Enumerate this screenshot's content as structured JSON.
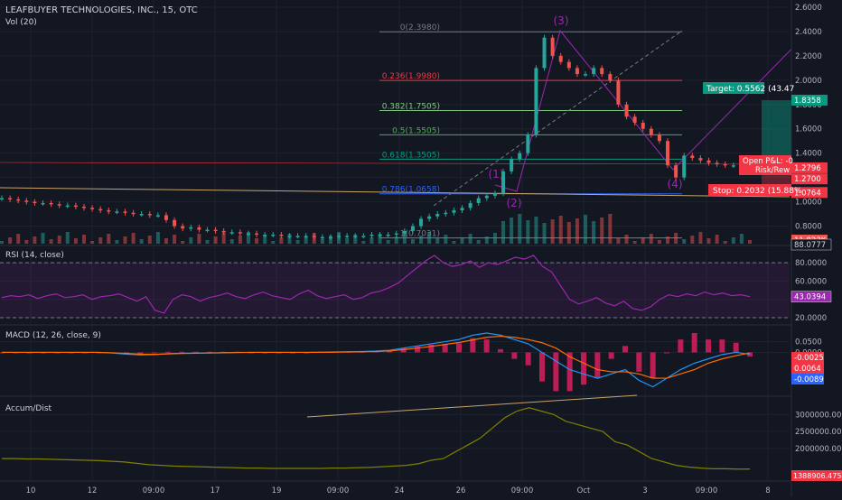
{
  "header": {
    "title": "LEAFBUYER TECHNOLOGIES, INC., 15, OTC",
    "vol_label": "Vol (20)"
  },
  "colors": {
    "background": "#131722",
    "up": "#26a69a",
    "down": "#ef5350",
    "rsi": "#9c27b0",
    "macd_line": "#2196f3",
    "signal_line": "#ff6d00",
    "hist": "#e91e63",
    "accum": "#808000",
    "fib": "#787b86"
  },
  "chart_data": [
    {
      "type": "line",
      "panel": "price",
      "y_ticks": [
        "2.6000",
        "2.4000",
        "2.2000",
        "2.0000",
        "1.8000",
        "1.6000",
        "1.4000",
        "1.2000",
        "1.0000",
        "0.8000"
      ],
      "ylim": [
        0.7,
        2.6
      ],
      "x_ticks": [
        "10",
        "12",
        "09:00",
        "17",
        "19",
        "09:00",
        "24",
        "26",
        "09:00",
        "Oct",
        "3",
        "09:00",
        "8"
      ],
      "fib_levels": [
        {
          "label": "0(2.3980)",
          "value": 2.398,
          "color": "#787b86"
        },
        {
          "label": "0.236(1.9980)",
          "value": 1.998,
          "color": "#f23645"
        },
        {
          "label": "0.382(1.7505)",
          "value": 1.7505,
          "color": "#81c784"
        },
        {
          "label": "0.5(1.5505)",
          "value": 1.5505,
          "color": "#4caf50"
        },
        {
          "label": "0.618(1.3505)",
          "value": 1.3505,
          "color": "#089981"
        },
        {
          "label": "0.786(1.0658)",
          "value": 1.0658,
          "color": "#2962ff"
        },
        {
          "label": "1(0.7031)",
          "value": 0.7031,
          "color": "#787b86"
        }
      ],
      "wave_labels": [
        "(1)",
        "(2)",
        "(3)",
        "(4)"
      ],
      "series": [
        {
          "values": [
            1.03,
            1.02,
            1.01,
            1.0,
            0.99,
            0.99,
            0.98,
            0.97,
            0.97,
            0.96,
            0.95,
            0.94,
            0.93,
            0.92,
            0.92,
            0.91,
            0.9,
            0.9,
            0.89,
            0.89,
            0.85,
            0.8,
            0.78,
            0.79,
            0.77,
            0.77,
            0.76,
            0.75,
            0.75,
            0.74,
            0.74,
            0.73,
            0.73,
            0.73,
            0.72,
            0.72,
            0.72,
            0.72,
            0.71,
            0.71,
            0.71,
            0.72,
            0.72,
            0.72,
            0.72,
            0.73,
            0.73,
            0.73,
            0.74,
            0.76,
            0.8,
            0.86,
            0.88,
            0.9,
            0.91,
            0.93,
            0.95,
            0.99,
            1.03,
            1.05,
            1.07,
            1.25,
            1.35,
            1.4,
            1.55,
            2.1,
            2.35,
            2.2,
            2.15,
            2.1,
            2.05,
            2.05,
            2.1,
            2.05,
            2.0,
            1.8,
            1.7,
            1.65,
            1.6,
            1.55,
            1.5,
            1.3,
            1.2,
            1.38,
            1.36,
            1.34,
            1.32,
            1.31,
            1.3,
            1.3,
            1.31,
            1.3
          ]
        }
      ],
      "annotations": {
        "target_label": "Target: 0.5562 (43.47",
        "target_price": "1.8358",
        "open_pl_label": "Open P&L: -0",
        "risk_label": "Risk/Rew",
        "stop_label": "Stop: 0.2032 (15.88%",
        "price_tags": [
          "1.2796",
          "1.2700",
          "1.0764"
        ],
        "vol_tag": "11.823K"
      }
    },
    {
      "type": "line",
      "panel": "rsi",
      "title": "RSI (14, close)",
      "y_ticks": [
        "80.0000",
        "60.0000",
        "40.0000",
        "20.0000"
      ],
      "ylim": [
        20,
        90
      ],
      "upper_tag": "88.0777",
      "last_tag": "43.0394",
      "series": [
        {
          "values": [
            42,
            44,
            43,
            45,
            41,
            44,
            46,
            42,
            43,
            45,
            40,
            43,
            44,
            46,
            42,
            38,
            43,
            28,
            25,
            40,
            45,
            43,
            38,
            42,
            44,
            47,
            43,
            41,
            45,
            48,
            44,
            42,
            40,
            46,
            50,
            44,
            41,
            43,
            45,
            40,
            42,
            47,
            49,
            53,
            58,
            66,
            74,
            82,
            88,
            80,
            76,
            78,
            82,
            75,
            80,
            78,
            82,
            86,
            84,
            88,
            76,
            70,
            55,
            40,
            35,
            38,
            42,
            36,
            33,
            38,
            30,
            28,
            32,
            40,
            45,
            43,
            46,
            44,
            48,
            45,
            47,
            44,
            45,
            43
          ]
        }
      ]
    },
    {
      "type": "line",
      "panel": "macd",
      "title": "MACD (12, 26, close, 9)",
      "y_ticks": [
        "0.0500",
        "0.0000"
      ],
      "ylim": [
        -0.17,
        0.09
      ],
      "tags": [
        "-0.0025",
        "0.0064",
        "-0.0089"
      ],
      "series": [
        {
          "name": "",
          "values": [
            0.0,
            0.0,
            0.0,
            0.0,
            0.0,
            0.0,
            0.0,
            0.0,
            -0.003,
            -0.008,
            -0.012,
            -0.01,
            -0.006,
            -0.004,
            -0.003,
            -0.002,
            -0.001,
            0.0,
            0.0,
            0.0,
            0.0,
            0.0,
            0.0,
            0.001,
            0.002,
            0.003,
            0.004,
            0.006,
            0.01,
            0.02,
            0.03,
            0.04,
            0.05,
            0.06,
            0.08,
            0.09,
            0.08,
            0.06,
            0.04,
            0.0,
            -0.04,
            -0.08,
            -0.1,
            -0.12,
            -0.1,
            -0.08,
            -0.13,
            -0.16,
            -0.12,
            -0.08,
            -0.05,
            -0.03,
            -0.01,
            0.0,
            -0.0089
          ]
        },
        {
          "name": "",
          "values": [
            0.0,
            0.0,
            0.0,
            0.0,
            0.0,
            0.0,
            0.0,
            0.0,
            -0.002,
            -0.005,
            -0.008,
            -0.009,
            -0.007,
            -0.005,
            -0.004,
            -0.003,
            -0.002,
            -0.001,
            0.0,
            0.0,
            0.0,
            0.0,
            0.0,
            0.0,
            0.001,
            0.002,
            0.003,
            0.004,
            0.007,
            0.013,
            0.02,
            0.028,
            0.037,
            0.046,
            0.058,
            0.07,
            0.075,
            0.07,
            0.06,
            0.045,
            0.02,
            -0.02,
            -0.05,
            -0.08,
            -0.09,
            -0.09,
            -0.1,
            -0.12,
            -0.12,
            -0.1,
            -0.08,
            -0.05,
            -0.03,
            -0.015,
            -0.0025
          ]
        }
      ]
    },
    {
      "type": "area",
      "panel": "accum",
      "title": "Accum/Dist",
      "y_ticks": [
        "3000000.0000",
        "2500000.0000",
        "2000000.0000"
      ],
      "ylim": [
        1250000,
        3300000
      ],
      "last_tag": "1388906.4750",
      "series": [
        {
          "values": [
            1700000,
            1700000,
            1690000,
            1690000,
            1680000,
            1670000,
            1660000,
            1650000,
            1640000,
            1620000,
            1600000,
            1560000,
            1520000,
            1500000,
            1480000,
            1470000,
            1460000,
            1450000,
            1440000,
            1430000,
            1420000,
            1420000,
            1410000,
            1410000,
            1410000,
            1410000,
            1410000,
            1420000,
            1420000,
            1430000,
            1440000,
            1460000,
            1480000,
            1500000,
            1550000,
            1650000,
            1700000,
            1900000,
            2100000,
            2300000,
            2600000,
            2900000,
            3100000,
            3200000,
            3100000,
            3000000,
            2800000,
            2700000,
            2600000,
            2500000,
            2200000,
            2100000,
            1900000,
            1700000,
            1600000,
            1500000,
            1450000,
            1420000,
            1400000,
            1400000,
            1390000,
            1388906
          ]
        }
      ]
    }
  ]
}
